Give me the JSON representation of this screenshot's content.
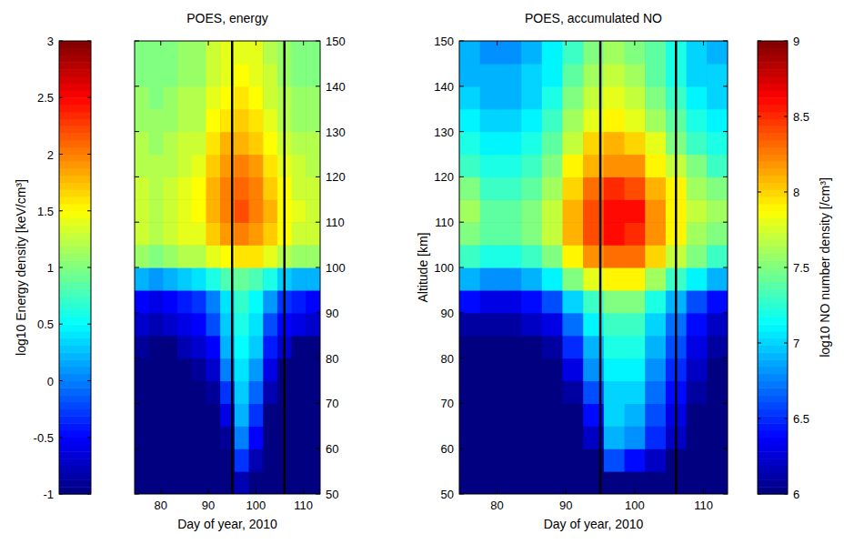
{
  "chart_data": [
    {
      "type": "heatmap",
      "title": "POES, energy",
      "xlabel": "Day of year, 2010",
      "x": [
        76,
        79,
        82,
        85,
        88,
        91,
        94,
        97,
        100,
        103,
        106,
        109,
        112
      ],
      "y": [
        52.5,
        57.5,
        62.5,
        67.5,
        72.5,
        77.5,
        82.5,
        87.5,
        92.5,
        97.5,
        102.5,
        107.5,
        112.5,
        117.5,
        122.5,
        127.5,
        132.5,
        137.5,
        142.5,
        147.5
      ],
      "z": [
        [
          -1,
          -1,
          -1,
          -1,
          -1,
          -1,
          -1,
          -0.8,
          -1,
          -1,
          -1,
          -1,
          -1
        ],
        [
          -1,
          -1,
          -1,
          -1,
          -1,
          -1,
          -1,
          -0.3,
          -0.8,
          -1,
          -1,
          -1,
          -1
        ],
        [
          -1,
          -1,
          -1,
          -1,
          -1,
          -1,
          -0.9,
          0,
          -0.5,
          -1,
          -1,
          -1,
          -1
        ],
        [
          -1,
          -1,
          -1,
          -1,
          -1,
          -1,
          -0.6,
          0.2,
          -0.3,
          -1,
          -1,
          -1,
          -1
        ],
        [
          -1,
          -1,
          -1,
          -1,
          -1,
          -0.9,
          -0.3,
          0.3,
          -0.1,
          -0.8,
          -1,
          -1,
          -1
        ],
        [
          -1,
          -1,
          -1,
          -1,
          -0.9,
          -0.7,
          0,
          0.4,
          0.1,
          -0.6,
          -1,
          -1,
          -1
        ],
        [
          -0.9,
          -1,
          -1,
          -0.8,
          -0.7,
          -0.5,
          0.2,
          0.5,
          0.3,
          -0.4,
          -0.7,
          -1,
          -1
        ],
        [
          -0.7,
          -0.8,
          -0.7,
          -0.6,
          -0.5,
          -0.2,
          0.3,
          0.6,
          0.4,
          -0.2,
          -0.5,
          -0.6,
          -0.7
        ],
        [
          -0.5,
          -0.6,
          -0.5,
          -0.4,
          -0.3,
          0,
          0.4,
          0.7,
          0.5,
          0.1,
          -0.3,
          -0.4,
          -0.5
        ],
        [
          0.2,
          0.1,
          0.2,
          0.3,
          0.4,
          0.6,
          0.8,
          0.9,
          0.8,
          0.6,
          0.3,
          0.2,
          0.2
        ],
        [
          1.1,
          1.0,
          1.1,
          1.2,
          1.2,
          1.4,
          1.5,
          1.6,
          1.6,
          1.4,
          1.2,
          1.1,
          1.1
        ],
        [
          1.3,
          1.2,
          1.3,
          1.4,
          1.4,
          1.7,
          1.9,
          2.0,
          1.9,
          1.7,
          1.5,
          1.3,
          1.3
        ],
        [
          1.3,
          1.2,
          1.3,
          1.4,
          1.5,
          1.8,
          2.0,
          2.2,
          2.0,
          1.8,
          1.5,
          1.4,
          1.3
        ],
        [
          1.3,
          1.2,
          1.3,
          1.4,
          1.5,
          1.8,
          2.0,
          2.1,
          2.0,
          1.7,
          1.5,
          1.3,
          1.3
        ],
        [
          1.2,
          1.2,
          1.2,
          1.3,
          1.4,
          1.7,
          1.9,
          2.0,
          1.9,
          1.6,
          1.4,
          1.3,
          1.2
        ],
        [
          1.2,
          1.1,
          1.2,
          1.3,
          1.3,
          1.6,
          1.8,
          1.8,
          1.7,
          1.5,
          1.3,
          1.2,
          1.2
        ],
        [
          1.1,
          1.1,
          1.1,
          1.2,
          1.2,
          1.5,
          1.6,
          1.7,
          1.6,
          1.4,
          1.2,
          1.1,
          1.1
        ],
        [
          1.1,
          1.0,
          1.1,
          1.2,
          1.2,
          1.4,
          1.5,
          1.6,
          1.5,
          1.3,
          1.2,
          1.1,
          1.1
        ],
        [
          1.0,
          1.0,
          1.0,
          1.1,
          1.1,
          1.3,
          1.4,
          1.5,
          1.4,
          1.3,
          1.1,
          1.0,
          1.0
        ],
        [
          1.0,
          1.0,
          1.0,
          1.1,
          1.1,
          1.3,
          1.4,
          1.4,
          1.4,
          1.2,
          1.1,
          1.0,
          1.0
        ]
      ],
      "xlim": [
        74.5,
        113.5
      ],
      "xticks": [
        80,
        90,
        100,
        110
      ],
      "ylim": [
        50,
        150
      ],
      "yticks": [
        50,
        60,
        70,
        80,
        90,
        100,
        110,
        120,
        130,
        140,
        150
      ],
      "vlines": [
        95,
        106
      ],
      "colorbar": {
        "label": "log10 Energy density [keV/cm³]",
        "lim": [
          -1,
          3
        ],
        "ticks": [
          -1,
          -0.5,
          0,
          0.5,
          1,
          1.5,
          2,
          2.5,
          3
        ]
      }
    },
    {
      "type": "heatmap",
      "title": "POES, accumulated NO",
      "xlabel": "Day of year, 2010",
      "ylabel": "Altitude [km]",
      "x": [
        76,
        79,
        82,
        85,
        88,
        91,
        94,
        97,
        100,
        103,
        106,
        109,
        112
      ],
      "y": [
        52.5,
        57.5,
        62.5,
        67.5,
        72.5,
        77.5,
        82.5,
        87.5,
        92.5,
        97.5,
        102.5,
        107.5,
        112.5,
        117.5,
        122.5,
        127.5,
        132.5,
        137.5,
        142.5,
        147.5
      ],
      "z": [
        [
          6,
          6,
          6,
          6,
          6,
          6,
          6,
          6,
          6,
          6,
          6,
          6,
          6
        ],
        [
          6,
          6,
          6,
          6,
          6,
          6,
          6,
          6.6,
          6.4,
          6.2,
          6,
          6,
          6
        ],
        [
          6,
          6,
          6,
          6,
          6,
          6,
          6.2,
          6.9,
          6.8,
          6.5,
          6.2,
          6,
          6
        ],
        [
          6,
          6,
          6,
          6,
          6,
          6,
          6.4,
          7.0,
          6.9,
          6.6,
          6.3,
          6,
          6
        ],
        [
          6,
          6,
          6,
          6,
          6,
          6.1,
          6.6,
          7.0,
          7.0,
          6.7,
          6.4,
          6.1,
          6
        ],
        [
          6,
          6,
          6,
          6,
          6,
          6.3,
          6.8,
          7.1,
          7.1,
          6.8,
          6.5,
          6.2,
          6
        ],
        [
          6,
          6,
          6,
          6,
          6.1,
          6.5,
          6.9,
          7.2,
          7.2,
          6.9,
          6.6,
          6.3,
          6.1
        ],
        [
          6.1,
          6.1,
          6.1,
          6.2,
          6.3,
          6.7,
          7.1,
          7.3,
          7.3,
          7.0,
          6.7,
          6.4,
          6.2
        ],
        [
          6.4,
          6.3,
          6.3,
          6.4,
          6.6,
          7.0,
          7.3,
          7.5,
          7.5,
          7.2,
          6.9,
          6.6,
          6.4
        ],
        [
          6.9,
          6.8,
          6.8,
          6.9,
          7.1,
          7.5,
          7.8,
          7.9,
          7.9,
          7.6,
          7.3,
          7.1,
          6.9
        ],
        [
          7.3,
          7.2,
          7.2,
          7.3,
          7.5,
          7.9,
          8.2,
          8.3,
          8.3,
          8.0,
          7.7,
          7.5,
          7.3
        ],
        [
          7.5,
          7.4,
          7.4,
          7.5,
          7.7,
          8.1,
          8.4,
          8.6,
          8.5,
          8.2,
          7.9,
          7.6,
          7.5
        ],
        [
          7.6,
          7.4,
          7.4,
          7.5,
          7.7,
          8.1,
          8.4,
          8.6,
          8.6,
          8.2,
          7.9,
          7.7,
          7.6
        ],
        [
          7.5,
          7.3,
          7.3,
          7.4,
          7.6,
          8.0,
          8.3,
          8.5,
          8.4,
          8.1,
          7.9,
          7.6,
          7.5
        ],
        [
          7.3,
          7.2,
          7.2,
          7.3,
          7.5,
          7.9,
          8.1,
          8.2,
          8.2,
          7.9,
          7.7,
          7.5,
          7.3
        ],
        [
          7.2,
          7.1,
          7.1,
          7.2,
          7.4,
          7.7,
          8.0,
          8.1,
          8.0,
          7.8,
          7.5,
          7.3,
          7.2
        ],
        [
          7.1,
          7.0,
          7.0,
          7.1,
          7.3,
          7.6,
          7.8,
          7.9,
          7.8,
          7.6,
          7.4,
          7.2,
          7.1
        ],
        [
          7.0,
          6.9,
          6.9,
          7.0,
          7.2,
          7.5,
          7.7,
          7.8,
          7.7,
          7.5,
          7.3,
          7.1,
          7.0
        ],
        [
          6.9,
          6.9,
          6.9,
          7.0,
          7.1,
          7.4,
          7.6,
          7.7,
          7.6,
          7.4,
          7.2,
          7.0,
          7.0
        ],
        [
          6.9,
          6.8,
          6.8,
          6.9,
          7.1,
          7.3,
          7.5,
          7.6,
          7.5,
          7.4,
          7.2,
          7.0,
          6.9
        ]
      ],
      "xlim": [
        74.5,
        113.5
      ],
      "xticks": [
        80,
        90,
        100,
        110
      ],
      "ylim": [
        50,
        150
      ],
      "yticks": [
        50,
        60,
        70,
        80,
        90,
        100,
        110,
        120,
        130,
        140,
        150
      ],
      "vlines": [
        95,
        106
      ],
      "colorbar": {
        "label": "log10 NO number density [/cm³]",
        "lim": [
          6,
          9
        ],
        "ticks": [
          6,
          6.5,
          7,
          7.5,
          8,
          8.5,
          9
        ]
      }
    }
  ]
}
